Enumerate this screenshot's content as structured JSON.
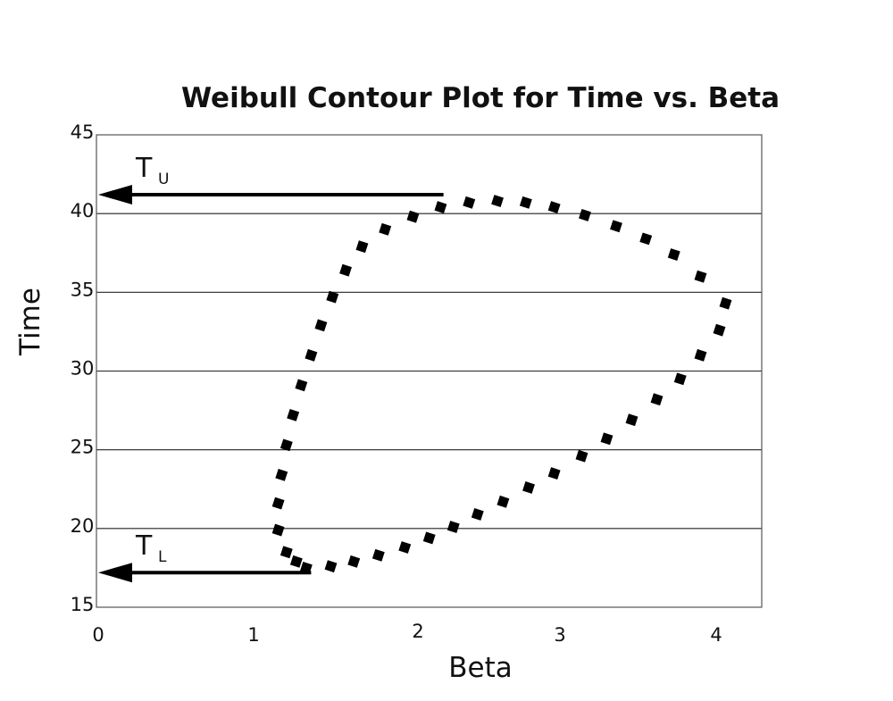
{
  "chart_data": {
    "type": "scatter",
    "title": "Weibull Contour Plot for Time vs. Beta",
    "xlabel": "Beta",
    "ylabel": "Time",
    "xlim": [
      0,
      4.3
    ],
    "ylim": [
      15,
      45
    ],
    "y_ticks": [
      "15",
      "20",
      "25",
      "30",
      "35",
      "40",
      "45"
    ],
    "x_ticks": [
      "0",
      "1",
      "2",
      "3",
      "4"
    ],
    "grid": "horizontal",
    "series": [
      {
        "style": "dotted-contour",
        "color": "#000000",
        "points": [
          [
            1.32,
            17.5
          ],
          [
            1.47,
            17.6
          ],
          [
            1.61,
            17.9
          ],
          [
            1.76,
            18.3
          ],
          [
            1.92,
            18.8
          ],
          [
            2.08,
            19.4
          ],
          [
            2.25,
            20.1
          ],
          [
            2.42,
            20.9
          ],
          [
            2.6,
            21.7
          ],
          [
            2.78,
            22.6
          ],
          [
            2.96,
            23.5
          ],
          [
            3.14,
            24.6
          ],
          [
            3.3,
            25.7
          ],
          [
            3.46,
            26.9
          ],
          [
            3.62,
            28.2
          ],
          [
            3.77,
            29.5
          ],
          [
            3.9,
            31.0
          ],
          [
            4.02,
            32.6
          ],
          [
            4.06,
            34.3
          ],
          [
            3.9,
            36.0
          ],
          [
            3.73,
            37.4
          ],
          [
            3.55,
            38.4
          ],
          [
            3.36,
            39.2
          ],
          [
            3.16,
            39.9
          ],
          [
            2.96,
            40.4
          ],
          [
            2.76,
            40.7
          ],
          [
            2.56,
            40.8
          ],
          [
            2.36,
            40.7
          ],
          [
            2.16,
            40.4
          ],
          [
            1.97,
            39.8
          ],
          [
            1.8,
            39.0
          ],
          [
            1.66,
            37.9
          ],
          [
            1.56,
            36.4
          ],
          [
            1.48,
            34.7
          ],
          [
            1.41,
            32.9
          ],
          [
            1.35,
            31.0
          ],
          [
            1.29,
            29.1
          ],
          [
            1.24,
            27.2
          ],
          [
            1.2,
            25.3
          ],
          [
            1.17,
            23.4
          ],
          [
            1.15,
            21.6
          ],
          [
            1.15,
            19.9
          ],
          [
            1.2,
            18.5
          ],
          [
            1.26,
            17.9
          ]
        ]
      }
    ],
    "annotations": [
      {
        "label": "T",
        "subscript": "U",
        "y": 41.2,
        "x_from": 2.18,
        "x_to": 0
      },
      {
        "label": "T",
        "subscript": "L",
        "y": 17.2,
        "x_from": 1.35,
        "x_to": 0
      }
    ]
  }
}
